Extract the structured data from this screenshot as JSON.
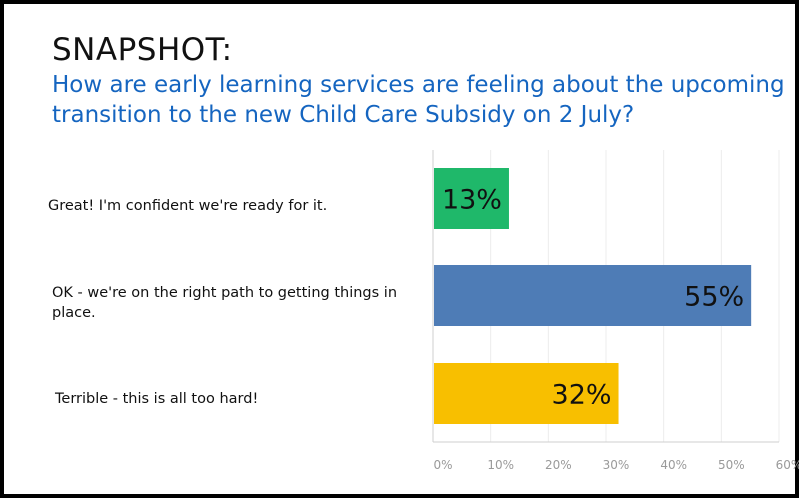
{
  "header": {
    "title": "SNAPSHOT:",
    "question": "How are early learning services are feeling about the upcoming transition to the new Child Care Subsidy on 2 July?"
  },
  "chart_data": {
    "type": "bar",
    "orientation": "horizontal",
    "categories": [
      "Great! I'm confident we're ready for it.",
      "OK - we're on the right path to getting things in place.",
      "Terrible - this is all too hard!"
    ],
    "values": [
      13,
      55,
      32
    ],
    "value_labels": [
      "13%",
      "55%",
      "32%"
    ],
    "colors": [
      "#1fb86a",
      "#4e7cb6",
      "#f8bf00"
    ],
    "xlim": [
      0,
      60
    ],
    "xticks": [
      "0%",
      "10%",
      "20%",
      "30%",
      "40%",
      "50%",
      "60%"
    ],
    "grid": true
  }
}
